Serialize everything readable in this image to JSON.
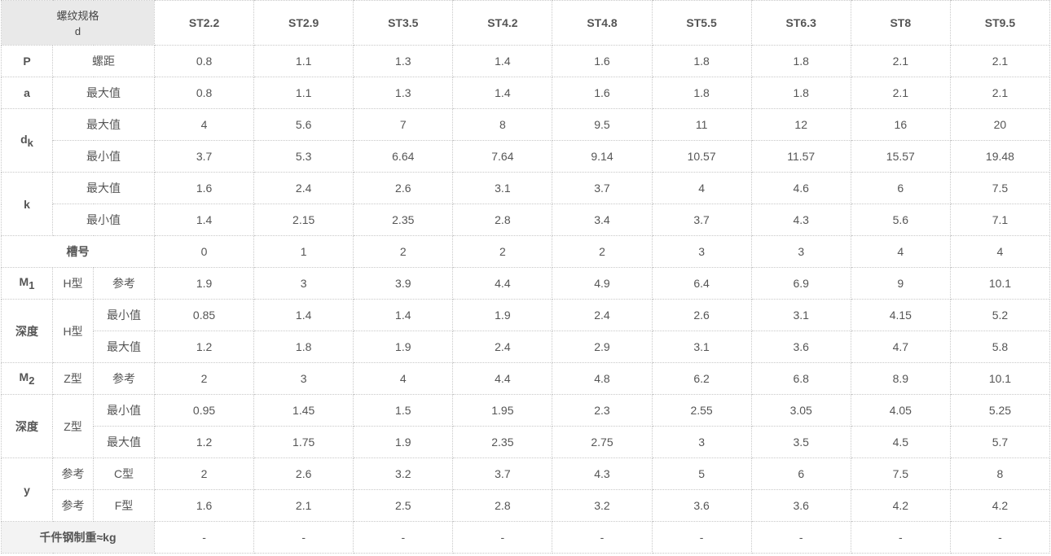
{
  "header": {
    "corner_line1": "螺纹规格",
    "corner_line2": "d",
    "columns": [
      "ST2.2",
      "ST2.9",
      "ST3.5",
      "ST4.2",
      "ST4.8",
      "ST5.5",
      "ST6.3",
      "ST8",
      "ST9.5"
    ]
  },
  "rows": {
    "P": {
      "symbol": "P",
      "label": "螺距",
      "values": [
        "0.8",
        "1.1",
        "1.3",
        "1.4",
        "1.6",
        "1.8",
        "1.8",
        "2.1",
        "2.1"
      ]
    },
    "a": {
      "symbol": "a",
      "label": "最大值",
      "values": [
        "0.8",
        "1.1",
        "1.3",
        "1.4",
        "1.6",
        "1.8",
        "1.8",
        "2.1",
        "2.1"
      ]
    },
    "dk_max": {
      "symbol": "d",
      "symbol_sub": "k",
      "label": "最大值",
      "values": [
        "4",
        "5.6",
        "7",
        "8",
        "9.5",
        "11",
        "12",
        "16",
        "20"
      ]
    },
    "dk_min": {
      "label": "最小值",
      "values": [
        "3.7",
        "5.3",
        "6.64",
        "7.64",
        "9.14",
        "10.57",
        "11.57",
        "15.57",
        "19.48"
      ]
    },
    "k_max": {
      "symbol": "k",
      "label": "最大值",
      "values": [
        "1.6",
        "2.4",
        "2.6",
        "3.1",
        "3.7",
        "4",
        "4.6",
        "6",
        "7.5"
      ]
    },
    "k_min": {
      "label": "最小值",
      "values": [
        "1.4",
        "2.15",
        "2.35",
        "2.8",
        "3.4",
        "3.7",
        "4.3",
        "5.6",
        "7.1"
      ]
    },
    "groove": {
      "label": "槽号",
      "values": [
        "0",
        "1",
        "2",
        "2",
        "2",
        "3",
        "3",
        "4",
        "4"
      ]
    },
    "m1": {
      "symbol": "M",
      "symbol_sub": "1",
      "type": "H型",
      "label": "参考",
      "values": [
        "1.9",
        "3",
        "3.9",
        "4.4",
        "4.9",
        "6.4",
        "6.9",
        "9",
        "10.1"
      ]
    },
    "depth_h_min": {
      "symbol": "深度",
      "type": "H型",
      "label": "最小值",
      "values": [
        "0.85",
        "1.4",
        "1.4",
        "1.9",
        "2.4",
        "2.6",
        "3.1",
        "4.15",
        "5.2"
      ]
    },
    "depth_h_max": {
      "label": "最大值",
      "values": [
        "1.2",
        "1.8",
        "1.9",
        "2.4",
        "2.9",
        "3.1",
        "3.6",
        "4.7",
        "5.8"
      ]
    },
    "m2": {
      "symbol": "M",
      "symbol_sub": "2",
      "type": "Z型",
      "label": "参考",
      "values": [
        "2",
        "3",
        "4",
        "4.4",
        "4.8",
        "6.2",
        "6.8",
        "8.9",
        "10.1"
      ]
    },
    "depth_z_min": {
      "symbol": "深度",
      "type": "Z型",
      "label": "最小值",
      "values": [
        "0.95",
        "1.45",
        "1.5",
        "1.95",
        "2.3",
        "2.55",
        "3.05",
        "4.05",
        "5.25"
      ]
    },
    "depth_z_max": {
      "label": "最大值",
      "values": [
        "1.2",
        "1.75",
        "1.9",
        "2.35",
        "2.75",
        "3",
        "3.5",
        "4.5",
        "5.7"
      ]
    },
    "y_c": {
      "symbol": "y",
      "ref": "参考",
      "label": "C型",
      "values": [
        "2",
        "2.6",
        "3.2",
        "3.7",
        "4.3",
        "5",
        "6",
        "7.5",
        "8"
      ]
    },
    "y_f": {
      "ref": "参考",
      "label": "F型",
      "values": [
        "1.6",
        "2.1",
        "2.5",
        "2.8",
        "3.2",
        "3.6",
        "3.6",
        "4.2",
        "4.2"
      ]
    },
    "weight": {
      "label": "千件钢制重≈kg",
      "values": [
        "-",
        "-",
        "-",
        "-",
        "-",
        "-",
        "-",
        "-",
        "-"
      ]
    }
  },
  "colors": {
    "header_blue": "#1f5aa6",
    "corner_bg": "#e9e9e9",
    "border": "#c8c8c8",
    "dash_red": "#e06060"
  }
}
